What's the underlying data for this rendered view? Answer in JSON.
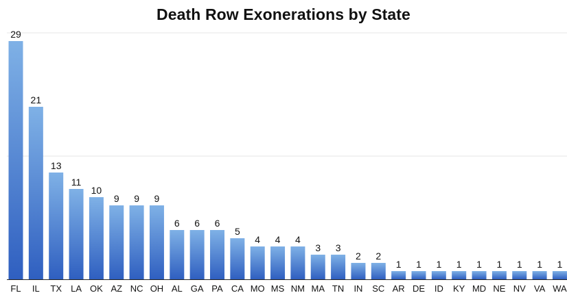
{
  "chart_data": {
    "type": "bar",
    "title": "Death Row Exonerations by State",
    "xlabel": "",
    "ylabel": "",
    "ylim": [
      0,
      30
    ],
    "grid": true,
    "legend": "none",
    "categories": [
      "FL",
      "IL",
      "TX",
      "LA",
      "OK",
      "AZ",
      "NC",
      "OH",
      "AL",
      "GA",
      "PA",
      "CA",
      "MO",
      "MS",
      "NM",
      "MA",
      "TN",
      "IN",
      "SC",
      "AR",
      "DE",
      "ID",
      "KY",
      "MD",
      "NE",
      "NV",
      "VA",
      "WA"
    ],
    "values": [
      29,
      21,
      13,
      11,
      10,
      9,
      9,
      9,
      6,
      6,
      6,
      5,
      4,
      4,
      4,
      3,
      3,
      2,
      2,
      1,
      1,
      1,
      1,
      1,
      1,
      1,
      1,
      1
    ],
    "colors": {
      "bar_top": "#7fb1e6",
      "bar_bottom": "#2f5fc0",
      "gridline": "#e4e4e4",
      "axis": "#222222"
    }
  }
}
